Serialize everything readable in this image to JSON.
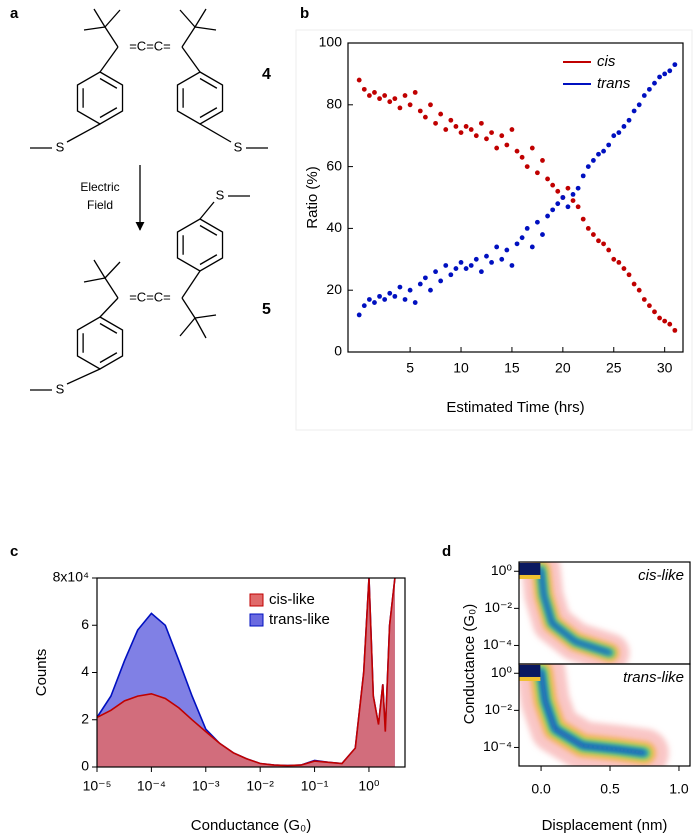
{
  "scheme": {
    "label": "a",
    "compounds": [
      "4",
      "5"
    ],
    "arrow_label": [
      "Electric",
      "Field"
    ],
    "sulfur": "S",
    "cumulene": "=C=C="
  },
  "chart_data": [
    {
      "type": "scatter",
      "label": "b",
      "xlabel": "Estimated Time (hrs)",
      "ylabel": "Ratio (%)",
      "x": [
        0,
        0.5,
        1,
        1.5,
        2,
        2.5,
        3,
        3.5,
        4,
        4.5,
        5,
        5.5,
        6,
        6.5,
        7,
        7.5,
        8,
        8.5,
        9,
        9.5,
        10,
        10.5,
        11,
        11.5,
        12,
        12.5,
        13,
        13.5,
        14,
        14.5,
        15,
        15.5,
        16,
        16.5,
        17,
        17.5,
        18,
        18.5,
        19,
        19.5,
        20,
        20.5,
        21,
        21.5,
        22,
        22.5,
        23,
        23.5,
        24,
        24.5,
        25,
        25.5,
        26,
        26.5,
        27,
        27.5,
        28,
        28.5,
        29,
        29.5,
        30,
        30.5,
        31
      ],
      "series": [
        {
          "name": "cis",
          "color": "#c00000",
          "values": [
            88,
            85,
            83,
            84,
            82,
            83,
            81,
            82,
            79,
            83,
            80,
            84,
            78,
            76,
            80,
            74,
            77,
            72,
            75,
            73,
            71,
            73,
            72,
            70,
            74,
            69,
            71,
            66,
            70,
            67,
            72,
            65,
            63,
            60,
            66,
            58,
            62,
            56,
            54,
            52,
            50,
            53,
            49,
            47,
            43,
            40,
            38,
            36,
            35,
            33,
            30,
            29,
            27,
            25,
            22,
            20,
            17,
            15,
            13,
            11,
            10,
            9,
            7
          ]
        },
        {
          "name": "trans",
          "color": "#0010c0",
          "values": [
            12,
            15,
            17,
            16,
            18,
            17,
            19,
            18,
            21,
            17,
            20,
            16,
            22,
            24,
            20,
            26,
            23,
            28,
            25,
            27,
            29,
            27,
            28,
            30,
            26,
            31,
            29,
            34,
            30,
            33,
            28,
            35,
            37,
            40,
            34,
            42,
            38,
            44,
            46,
            48,
            50,
            47,
            51,
            53,
            57,
            60,
            62,
            64,
            65,
            67,
            70,
            71,
            73,
            75,
            78,
            80,
            83,
            85,
            87,
            89,
            90,
            91,
            93
          ]
        }
      ],
      "xlim": [
        -1.1,
        31.8
      ],
      "xticks": [
        5,
        10,
        15,
        20,
        25,
        30
      ],
      "ylim": [
        0,
        100
      ],
      "yticks": [
        0,
        20,
        40,
        60,
        80,
        100
      ],
      "legend": "upper right"
    },
    {
      "type": "area",
      "label": "c",
      "xlabel": "Conductance (G₀)",
      "ylabel": "Counts",
      "xscale": "log",
      "x": [
        1e-05,
        1.8e-05,
        3.2e-05,
        5.6e-05,
        0.0001,
        0.00018,
        0.00032,
        0.00056,
        0.001,
        0.0018,
        0.0032,
        0.0056,
        0.01,
        0.018,
        0.032,
        0.056,
        0.1,
        0.18,
        0.32,
        0.56,
        0.8,
        1.0,
        1.2,
        1.5,
        1.8,
        2.0,
        2.4,
        3.0
      ],
      "series": [
        {
          "name": "cis-like",
          "color": "#c00000",
          "fill": "#e06a6a",
          "values": [
            21000,
            24000,
            28000,
            30000,
            31000,
            29000,
            25000,
            20000,
            15000,
            10000,
            6000,
            3500,
            1500,
            800,
            600,
            800,
            2500,
            2000,
            1500,
            8000,
            40000,
            80000,
            30000,
            18000,
            35000,
            15000,
            60000,
            80000
          ]
        },
        {
          "name": "trans-like",
          "color": "#0010c0",
          "fill": "#6a6ae0",
          "values": [
            21000,
            30000,
            45000,
            58000,
            65000,
            60000,
            45000,
            30000,
            16000,
            10000,
            6000,
            3500,
            1500,
            800,
            600,
            800,
            2800,
            2000,
            1500,
            8000,
            40000,
            80000,
            30000,
            18000,
            35000,
            15000,
            60000,
            80000
          ]
        }
      ],
      "xlim": [
        1e-05,
        4.6
      ],
      "xticks": [
        {
          "value": 1e-05,
          "label": "10⁻⁵"
        },
        {
          "value": 0.0001,
          "label": "10⁻⁴"
        },
        {
          "value": 0.001,
          "label": "10⁻³"
        },
        {
          "value": 0.01,
          "label": "10⁻²"
        },
        {
          "value": 0.1,
          "label": "10⁻¹"
        },
        {
          "value": 1,
          "label": "10⁰"
        }
      ],
      "ylim": [
        0,
        80000
      ],
      "yticks": [
        0,
        {
          "value": 20000,
          "label": "2"
        },
        {
          "value": 40000,
          "label": "4"
        },
        {
          "value": 60000,
          "label": "6"
        },
        {
          "value": 80000,
          "label": "8x10⁴"
        }
      ],
      "legend": "upper right"
    },
    {
      "type": "heatmap",
      "label": "d",
      "xlabel": "Displacement (nm)",
      "ylabel": "Conductance (G₀)",
      "yscale": "log",
      "panels": [
        "cis-like",
        "trans-like"
      ],
      "xlim": [
        -0.16,
        1.08
      ],
      "xticks": [
        {
          "value": 0,
          "label": "0.0"
        },
        0.5,
        {
          "value": 1,
          "label": "1.0"
        }
      ],
      "ylim": [
        1e-05,
        3.16
      ],
      "yticks": [
        {
          "value": 1,
          "label": "10⁰"
        },
        {
          "value": 0.01,
          "label": "10⁻²"
        },
        {
          "value": 0.0001,
          "label": "10⁻⁴"
        }
      ]
    }
  ]
}
